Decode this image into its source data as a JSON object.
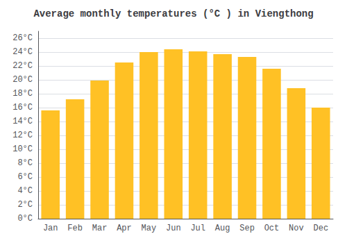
{
  "chart_data": {
    "type": "bar",
    "title": "Average monthly temperatures (°C ) in Viengthong",
    "categories": [
      "Jan",
      "Feb",
      "Mar",
      "Apr",
      "May",
      "Jun",
      "Jul",
      "Aug",
      "Sep",
      "Oct",
      "Nov",
      "Dec"
    ],
    "values": [
      15.6,
      17.2,
      19.9,
      22.5,
      24.0,
      24.4,
      24.1,
      23.7,
      23.3,
      21.6,
      18.8,
      16.0
    ],
    "color": "#FFC125",
    "ylim": [
      0,
      27
    ],
    "yticks": [
      {
        "value": 0,
        "label": "0°C"
      },
      {
        "value": 2,
        "label": "2°C"
      },
      {
        "value": 4,
        "label": "4°C"
      },
      {
        "value": 6,
        "label": "6°C"
      },
      {
        "value": 8,
        "label": "8°C"
      },
      {
        "value": 10,
        "label": "10°C"
      },
      {
        "value": 12,
        "label": "12°C"
      },
      {
        "value": 14,
        "label": "14°C"
      },
      {
        "value": 16,
        "label": "16°C"
      },
      {
        "value": 18,
        "label": "18°C"
      },
      {
        "value": 20,
        "label": "20°C"
      },
      {
        "value": 22,
        "label": "22°C"
      },
      {
        "value": 24,
        "label": "24°C"
      },
      {
        "value": 26,
        "label": "26°C"
      }
    ],
    "grid": true
  }
}
